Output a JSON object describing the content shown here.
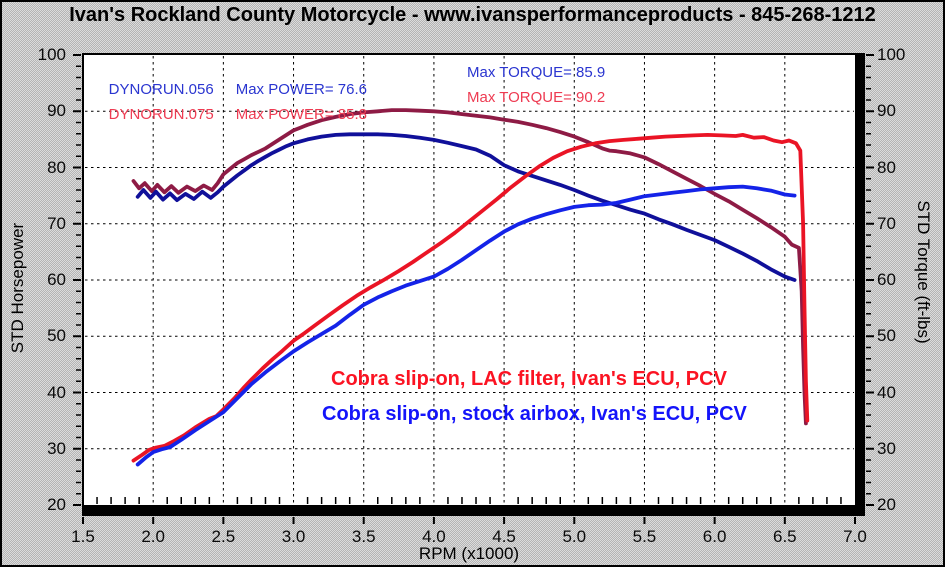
{
  "title": "Ivan's Rockland County Motorcycle - www.ivansperformanceproducts - 845-268-1212",
  "legend": {
    "run1": {
      "name": "DYNORUN.056",
      "max_power": "Max POWER= 76.6",
      "max_torque": "Max TORQUE= 85.9",
      "color": "#2a35d0"
    },
    "run2": {
      "name": "DYNORUN.075",
      "max_power": "Max POWER= 85.8",
      "max_torque": "Max TORQUE= 90.2",
      "color": "#ee3b52"
    }
  },
  "annotations": {
    "red": {
      "text": "Cobra slip-on, LAC filter, Ivan's ECU, PCV",
      "color": "#fb1322"
    },
    "blue": {
      "text": "Cobra slip-on, stock airbox, Ivan's ECU, PCV",
      "color": "#1414fa"
    }
  },
  "chart_data": {
    "type": "line",
    "xlabel": "RPM (x1000)",
    "ylabel_left": "STD Horsepower",
    "ylabel_right": "STD Torque (ft-lbs)",
    "xlim": [
      1.5,
      7.0
    ],
    "ylim": [
      20,
      100
    ],
    "xtick_labels": [
      "1.5",
      "2.0",
      "2.5",
      "3.0",
      "3.5",
      "4.0",
      "4.5",
      "5.0",
      "5.5",
      "6.0",
      "6.5",
      "7.0"
    ],
    "ytick_labels": [
      "20",
      "30",
      "40",
      "50",
      "60",
      "70",
      "80",
      "90",
      "100"
    ],
    "x_minor_step": 0.1,
    "y_minor_step": 2,
    "grid": true,
    "grid_style": "dashed",
    "series": [
      {
        "name": "torque-dynorun075",
        "axis": "right",
        "color": "#8e1b45",
        "points": [
          [
            1.86,
            77.6
          ],
          [
            1.9,
            76.3
          ],
          [
            1.94,
            77.2
          ],
          [
            1.99,
            75.8
          ],
          [
            2.03,
            76.9
          ],
          [
            2.08,
            75.6
          ],
          [
            2.13,
            76.7
          ],
          [
            2.18,
            75.5
          ],
          [
            2.24,
            76.6
          ],
          [
            2.3,
            75.8
          ],
          [
            2.36,
            76.8
          ],
          [
            2.42,
            76.0
          ],
          [
            2.46,
            77.2
          ],
          [
            2.5,
            78.8
          ],
          [
            2.55,
            79.8
          ],
          [
            2.6,
            80.8
          ],
          [
            2.65,
            81.5
          ],
          [
            2.7,
            82.2
          ],
          [
            2.75,
            82.8
          ],
          [
            2.8,
            83.4
          ],
          [
            2.85,
            84.2
          ],
          [
            2.9,
            85.0
          ],
          [
            2.95,
            85.8
          ],
          [
            3.0,
            86.6
          ],
          [
            3.05,
            87.1
          ],
          [
            3.1,
            87.6
          ],
          [
            3.2,
            88.4
          ],
          [
            3.3,
            89.0
          ],
          [
            3.4,
            89.5
          ],
          [
            3.5,
            89.8
          ],
          [
            3.6,
            90.0
          ],
          [
            3.7,
            90.2
          ],
          [
            3.8,
            90.2
          ],
          [
            3.9,
            90.1
          ],
          [
            4.0,
            90.0
          ],
          [
            4.1,
            89.8
          ],
          [
            4.2,
            89.5
          ],
          [
            4.3,
            89.2
          ],
          [
            4.4,
            88.9
          ],
          [
            4.5,
            88.5
          ],
          [
            4.6,
            88.1
          ],
          [
            4.7,
            87.6
          ],
          [
            4.8,
            87.0
          ],
          [
            4.9,
            86.3
          ],
          [
            5.0,
            85.5
          ],
          [
            5.1,
            84.5
          ],
          [
            5.2,
            83.4
          ],
          [
            5.25,
            83.0
          ],
          [
            5.3,
            82.9
          ],
          [
            5.4,
            82.5
          ],
          [
            5.5,
            81.8
          ],
          [
            5.6,
            80.6
          ],
          [
            5.7,
            79.3
          ],
          [
            5.8,
            78.0
          ],
          [
            5.9,
            76.7
          ],
          [
            6.0,
            75.3
          ],
          [
            6.1,
            74.0
          ],
          [
            6.2,
            72.5
          ],
          [
            6.3,
            71.0
          ],
          [
            6.4,
            69.4
          ],
          [
            6.5,
            67.7
          ],
          [
            6.55,
            66.3
          ],
          [
            6.6,
            65.7
          ],
          [
            6.62,
            58.0
          ],
          [
            6.63,
            48.0
          ],
          [
            6.64,
            40.0
          ],
          [
            6.65,
            34.5
          ]
        ]
      },
      {
        "name": "torque-dynorun056",
        "axis": "right",
        "color": "#10109a",
        "points": [
          [
            1.89,
            74.8
          ],
          [
            1.93,
            76.0
          ],
          [
            1.98,
            74.6
          ],
          [
            2.02,
            75.7
          ],
          [
            2.07,
            74.3
          ],
          [
            2.12,
            75.4
          ],
          [
            2.17,
            74.2
          ],
          [
            2.23,
            75.3
          ],
          [
            2.29,
            74.4
          ],
          [
            2.35,
            75.7
          ],
          [
            2.41,
            74.6
          ],
          [
            2.46,
            75.6
          ],
          [
            2.5,
            76.6
          ],
          [
            2.55,
            77.6
          ],
          [
            2.6,
            78.6
          ],
          [
            2.65,
            79.5
          ],
          [
            2.7,
            80.4
          ],
          [
            2.75,
            81.2
          ],
          [
            2.8,
            81.9
          ],
          [
            2.85,
            82.6
          ],
          [
            2.9,
            83.2
          ],
          [
            2.95,
            83.8
          ],
          [
            3.0,
            84.3
          ],
          [
            3.1,
            85.0
          ],
          [
            3.2,
            85.5
          ],
          [
            3.3,
            85.8
          ],
          [
            3.4,
            85.9
          ],
          [
            3.5,
            85.9
          ],
          [
            3.6,
            85.9
          ],
          [
            3.7,
            85.8
          ],
          [
            3.8,
            85.6
          ],
          [
            3.9,
            85.3
          ],
          [
            4.0,
            84.9
          ],
          [
            4.1,
            84.4
          ],
          [
            4.2,
            83.8
          ],
          [
            4.3,
            83.2
          ],
          [
            4.4,
            82.1
          ],
          [
            4.5,
            80.4
          ],
          [
            4.6,
            79.3
          ],
          [
            4.7,
            78.5
          ],
          [
            4.8,
            77.7
          ],
          [
            4.9,
            76.9
          ],
          [
            5.0,
            76.0
          ],
          [
            5.1,
            75.0
          ],
          [
            5.2,
            74.1
          ],
          [
            5.3,
            73.3
          ],
          [
            5.4,
            72.5
          ],
          [
            5.5,
            71.8
          ],
          [
            5.6,
            70.8
          ],
          [
            5.7,
            69.9
          ],
          [
            5.8,
            68.9
          ],
          [
            5.9,
            68.0
          ],
          [
            6.0,
            67.1
          ],
          [
            6.1,
            65.9
          ],
          [
            6.2,
            64.7
          ],
          [
            6.3,
            63.4
          ],
          [
            6.4,
            61.9
          ],
          [
            6.5,
            60.6
          ],
          [
            6.57,
            60.0
          ]
        ]
      },
      {
        "name": "power-dynorun075",
        "axis": "left",
        "color": "#ea1425",
        "points": [
          [
            1.86,
            27.9
          ],
          [
            1.92,
            28.9
          ],
          [
            1.97,
            29.8
          ],
          [
            2.02,
            30.2
          ],
          [
            2.08,
            30.5
          ],
          [
            2.15,
            31.4
          ],
          [
            2.22,
            32.4
          ],
          [
            2.3,
            33.8
          ],
          [
            2.4,
            35.3
          ],
          [
            2.45,
            35.8
          ],
          [
            2.5,
            37.0
          ],
          [
            2.58,
            39.0
          ],
          [
            2.65,
            41.0
          ],
          [
            2.7,
            42.3
          ],
          [
            2.78,
            44.3
          ],
          [
            2.85,
            45.9
          ],
          [
            2.92,
            47.4
          ],
          [
            3.0,
            49.2
          ],
          [
            3.08,
            50.6
          ],
          [
            3.15,
            51.9
          ],
          [
            3.25,
            53.7
          ],
          [
            3.35,
            55.5
          ],
          [
            3.45,
            57.2
          ],
          [
            3.55,
            58.7
          ],
          [
            3.65,
            60.1
          ],
          [
            3.75,
            61.6
          ],
          [
            3.85,
            63.2
          ],
          [
            3.95,
            64.9
          ],
          [
            4.05,
            66.6
          ],
          [
            4.15,
            68.4
          ],
          [
            4.25,
            70.4
          ],
          [
            4.35,
            72.4
          ],
          [
            4.45,
            74.4
          ],
          [
            4.55,
            76.5
          ],
          [
            4.65,
            78.4
          ],
          [
            4.75,
            80.2
          ],
          [
            4.85,
            81.7
          ],
          [
            4.95,
            82.9
          ],
          [
            5.05,
            83.7
          ],
          [
            5.15,
            84.3
          ],
          [
            5.25,
            84.7
          ],
          [
            5.35,
            84.9
          ],
          [
            5.45,
            85.1
          ],
          [
            5.55,
            85.3
          ],
          [
            5.65,
            85.5
          ],
          [
            5.75,
            85.6
          ],
          [
            5.85,
            85.7
          ],
          [
            5.95,
            85.8
          ],
          [
            6.05,
            85.7
          ],
          [
            6.15,
            85.6
          ],
          [
            6.2,
            85.8
          ],
          [
            6.28,
            85.3
          ],
          [
            6.35,
            85.4
          ],
          [
            6.42,
            84.8
          ],
          [
            6.48,
            84.5
          ],
          [
            6.53,
            84.8
          ],
          [
            6.58,
            84.3
          ],
          [
            6.61,
            83.0
          ],
          [
            6.63,
            70.0
          ],
          [
            6.64,
            55.0
          ],
          [
            6.65,
            42.0
          ],
          [
            6.66,
            35.0
          ]
        ]
      },
      {
        "name": "power-dynorun056",
        "axis": "left",
        "color": "#1423e8",
        "points": [
          [
            1.89,
            27.2
          ],
          [
            1.95,
            28.5
          ],
          [
            2.0,
            29.4
          ],
          [
            2.06,
            29.9
          ],
          [
            2.12,
            30.3
          ],
          [
            2.2,
            31.6
          ],
          [
            2.3,
            33.3
          ],
          [
            2.4,
            34.9
          ],
          [
            2.5,
            36.5
          ],
          [
            2.6,
            39.0
          ],
          [
            2.7,
            41.5
          ],
          [
            2.8,
            43.6
          ],
          [
            2.9,
            45.5
          ],
          [
            3.0,
            47.3
          ],
          [
            3.1,
            48.9
          ],
          [
            3.2,
            50.4
          ],
          [
            3.3,
            51.9
          ],
          [
            3.4,
            53.8
          ],
          [
            3.5,
            55.6
          ],
          [
            3.6,
            56.9
          ],
          [
            3.7,
            58.0
          ],
          [
            3.8,
            59.0
          ],
          [
            3.9,
            59.8
          ],
          [
            4.0,
            60.6
          ],
          [
            4.1,
            62.0
          ],
          [
            4.2,
            63.6
          ],
          [
            4.3,
            65.3
          ],
          [
            4.4,
            67.0
          ],
          [
            4.5,
            68.6
          ],
          [
            4.6,
            69.9
          ],
          [
            4.7,
            70.9
          ],
          [
            4.8,
            71.7
          ],
          [
            4.9,
            72.4
          ],
          [
            5.0,
            73.0
          ],
          [
            5.1,
            73.3
          ],
          [
            5.2,
            73.4
          ],
          [
            5.3,
            73.7
          ],
          [
            5.4,
            74.3
          ],
          [
            5.5,
            74.9
          ],
          [
            5.6,
            75.2
          ],
          [
            5.7,
            75.5
          ],
          [
            5.8,
            75.8
          ],
          [
            5.9,
            76.1
          ],
          [
            6.0,
            76.3
          ],
          [
            6.1,
            76.5
          ],
          [
            6.2,
            76.6
          ],
          [
            6.3,
            76.3
          ],
          [
            6.4,
            75.9
          ],
          [
            6.5,
            75.2
          ],
          [
            6.57,
            75.0
          ]
        ]
      }
    ]
  }
}
